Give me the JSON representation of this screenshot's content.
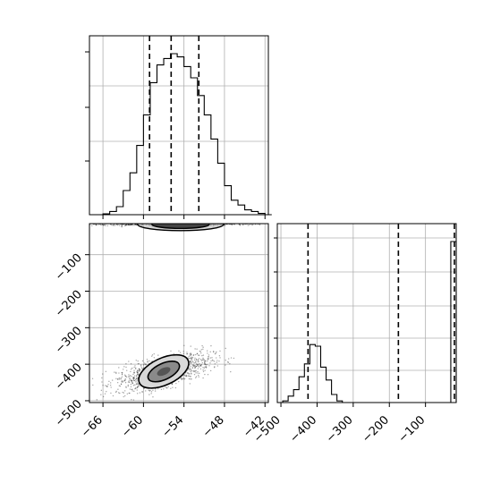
{
  "chart_data": [
    {
      "type": "histogram",
      "panel": "top-left",
      "xlim": [
        -68,
        -41.5
      ],
      "bins": [
        -66,
        -65,
        -64,
        -63,
        -62,
        -61,
        -60,
        -59,
        -58,
        -57,
        -56,
        -55,
        -54,
        -53,
        -52,
        -51,
        -50,
        -49,
        -48,
        -47,
        -46,
        -45,
        -44,
        -43,
        -42
      ],
      "counts": [
        0.005,
        0.02,
        0.05,
        0.15,
        0.26,
        0.43,
        0.62,
        0.82,
        0.93,
        0.97,
        1.0,
        0.98,
        0.92,
        0.85,
        0.74,
        0.62,
        0.47,
        0.32,
        0.18,
        0.09,
        0.06,
        0.03,
        0.02,
        0.008,
        0.0
      ],
      "quantiles": [
        -59.1,
        -55.9,
        -51.8
      ],
      "xticks": [
        -66,
        -60,
        -54,
        -48,
        -42
      ],
      "grid": true
    },
    {
      "type": "scatter",
      "panel": "bottom-left",
      "xlabel": "",
      "ylabel": "",
      "xlim": [
        -68,
        -41.5
      ],
      "ylim": [
        -505,
        -15
      ],
      "xticks": [
        -66,
        -60,
        -54,
        -48,
        -42
      ],
      "yticks": [
        -100,
        -200,
        -300,
        -400,
        -500
      ],
      "clusters": [
        {
          "x_center": -56,
          "x_spread": 7,
          "y_center": -16,
          "y_spread": 6
        },
        {
          "x_center": -57,
          "x_spread": 3.5,
          "y_center": -420,
          "y_spread": 25,
          "correlation": 0.6
        }
      ],
      "grid": true
    },
    {
      "type": "histogram",
      "panel": "bottom-right",
      "xlim": [
        -510,
        -15
      ],
      "bins": [
        -510,
        -495,
        -480,
        -465,
        -450,
        -435,
        -420,
        -405,
        -390,
        -375,
        -360,
        -345,
        -330,
        -315,
        -300,
        -285,
        -270,
        -255,
        -240,
        -225,
        -210,
        -195,
        -180,
        -165,
        -150,
        -135,
        -120,
        -105,
        -90,
        -75,
        -60,
        -45,
        -30
      ],
      "counts": [
        0.0,
        0.01,
        0.04,
        0.08,
        0.16,
        0.24,
        0.36,
        0.35,
        0.22,
        0.14,
        0.05,
        0.01,
        0,
        0,
        0,
        0,
        0,
        0,
        0,
        0,
        0,
        0,
        0,
        0,
        0,
        0,
        0,
        0,
        0,
        0,
        0,
        0,
        1.0
      ],
      "quantiles": [
        -425,
        -175,
        -20
      ],
      "xticks": [
        -500,
        -400,
        -300,
        -200,
        -100
      ],
      "grid": true
    }
  ]
}
